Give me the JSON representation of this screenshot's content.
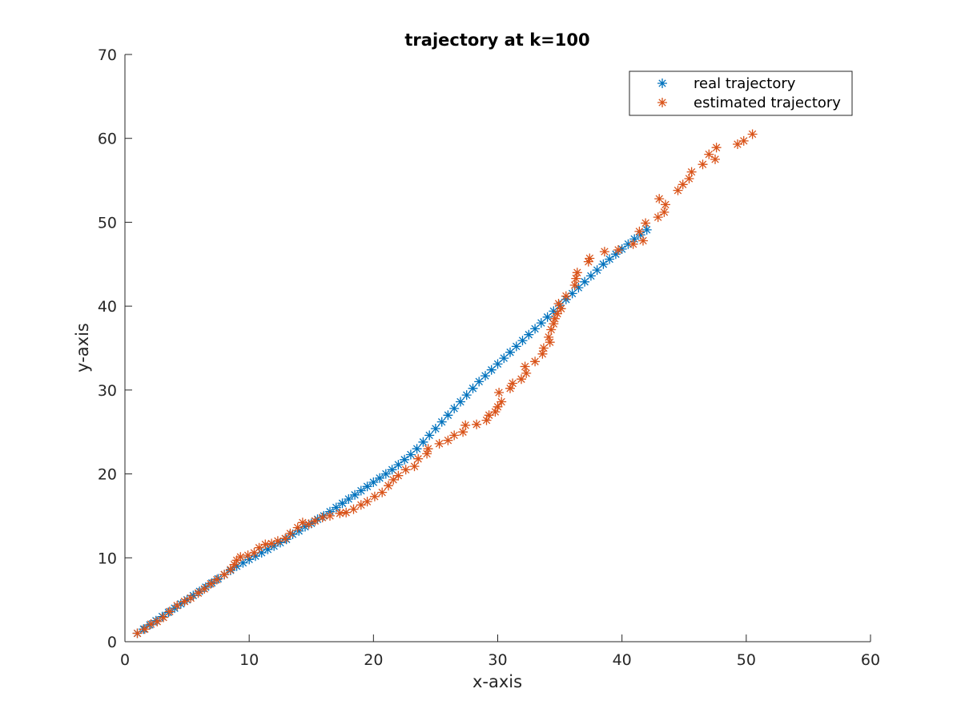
{
  "chart_data": {
    "type": "scatter",
    "title": "trajectory at k=100",
    "xlabel": "x-axis",
    "ylabel": "y-axis",
    "xlim": [
      0,
      60
    ],
    "ylim": [
      0,
      70
    ],
    "xticks": [
      "0",
      "10",
      "20",
      "30",
      "40",
      "50",
      "60"
    ],
    "yticks": [
      "0",
      "10",
      "20",
      "30",
      "40",
      "50",
      "60",
      "70"
    ],
    "grid": false,
    "legend_position": "top-right",
    "marker": "asterisk",
    "series": [
      {
        "name": "real trajectory",
        "color": "#0072BD",
        "points": [
          [
            1.0,
            1.0
          ],
          [
            1.5,
            1.5
          ],
          [
            2.0,
            2.0
          ],
          [
            2.5,
            2.5
          ],
          [
            3.0,
            3.0
          ],
          [
            3.5,
            3.5
          ],
          [
            4.0,
            4.0
          ],
          [
            4.5,
            4.5
          ],
          [
            5.0,
            5.0
          ],
          [
            5.5,
            5.5
          ],
          [
            6.0,
            6.0
          ],
          [
            6.5,
            6.5
          ],
          [
            7.0,
            7.0
          ],
          [
            7.5,
            7.5
          ],
          [
            8.0,
            8.0
          ],
          [
            8.5,
            8.5
          ],
          [
            9.0,
            9.0
          ],
          [
            9.5,
            9.4
          ],
          [
            10.0,
            9.8
          ],
          [
            10.5,
            10.2
          ],
          [
            11.0,
            10.6
          ],
          [
            11.5,
            11.0
          ],
          [
            12.0,
            11.4
          ],
          [
            12.5,
            11.8
          ],
          [
            13.0,
            12.2
          ],
          [
            13.5,
            12.8
          ],
          [
            14.0,
            13.2
          ],
          [
            14.5,
            13.7
          ],
          [
            15.0,
            14.1
          ],
          [
            15.5,
            14.6
          ],
          [
            16.0,
            15.0
          ],
          [
            16.5,
            15.5
          ],
          [
            17.0,
            16.0
          ],
          [
            17.5,
            16.5
          ],
          [
            18.0,
            17.0
          ],
          [
            18.5,
            17.5
          ],
          [
            19.0,
            18.0
          ],
          [
            19.5,
            18.5
          ],
          [
            20.0,
            19.0
          ],
          [
            20.5,
            19.5
          ],
          [
            21.0,
            20.0
          ],
          [
            21.5,
            20.5
          ],
          [
            22.0,
            21.1
          ],
          [
            22.5,
            21.7
          ],
          [
            23.0,
            22.3
          ],
          [
            23.5,
            23.0
          ],
          [
            24.0,
            23.8
          ],
          [
            24.5,
            24.6
          ],
          [
            25.0,
            25.4
          ],
          [
            25.5,
            26.2
          ],
          [
            26.0,
            27.0
          ],
          [
            26.5,
            27.8
          ],
          [
            27.0,
            28.6
          ],
          [
            27.5,
            29.4
          ],
          [
            28.0,
            30.2
          ],
          [
            28.5,
            31.0
          ],
          [
            29.0,
            31.7
          ],
          [
            29.5,
            32.4
          ],
          [
            30.0,
            33.1
          ],
          [
            30.5,
            33.8
          ],
          [
            31.0,
            34.5
          ],
          [
            31.5,
            35.2
          ],
          [
            32.0,
            35.9
          ],
          [
            32.5,
            36.6
          ],
          [
            33.0,
            37.3
          ],
          [
            33.5,
            38.0
          ],
          [
            34.0,
            38.7
          ],
          [
            34.5,
            39.4
          ],
          [
            35.0,
            40.1
          ],
          [
            35.5,
            40.8
          ],
          [
            36.0,
            41.5
          ],
          [
            36.5,
            42.2
          ],
          [
            37.0,
            42.9
          ],
          [
            37.5,
            43.6
          ],
          [
            38.0,
            44.3
          ],
          [
            38.5,
            45.0
          ],
          [
            39.0,
            45.6
          ],
          [
            39.5,
            46.2
          ],
          [
            40.0,
            46.8
          ],
          [
            40.5,
            47.4
          ],
          [
            41.0,
            48.0
          ],
          [
            41.5,
            48.5
          ],
          [
            42.0,
            49.1
          ]
        ]
      },
      {
        "name": "estimated trajectory",
        "color": "#D95319",
        "points": [
          [
            1.0,
            1.0
          ],
          [
            1.6,
            1.5
          ],
          [
            2.1,
            2.1
          ],
          [
            2.6,
            2.4
          ],
          [
            3.1,
            2.9
          ],
          [
            3.6,
            3.6
          ],
          [
            4.2,
            4.3
          ],
          [
            4.8,
            4.8
          ],
          [
            5.3,
            5.2
          ],
          [
            5.9,
            5.8
          ],
          [
            6.4,
            6.3
          ],
          [
            6.9,
            6.9
          ],
          [
            7.4,
            7.4
          ],
          [
            8.0,
            8.0
          ],
          [
            8.5,
            8.6
          ],
          [
            8.8,
            9.2
          ],
          [
            9.0,
            9.7
          ],
          [
            9.3,
            10.1
          ],
          [
            9.9,
            10.3
          ],
          [
            10.4,
            10.6
          ],
          [
            10.8,
            11.2
          ],
          [
            11.3,
            11.6
          ],
          [
            11.8,
            11.7
          ],
          [
            12.3,
            12.0
          ],
          [
            12.9,
            12.3
          ],
          [
            13.3,
            12.9
          ],
          [
            13.9,
            13.6
          ],
          [
            14.3,
            14.2
          ],
          [
            14.8,
            14.0
          ],
          [
            15.3,
            14.4
          ],
          [
            15.9,
            14.8
          ],
          [
            16.5,
            15.0
          ],
          [
            17.3,
            15.3
          ],
          [
            17.8,
            15.4
          ],
          [
            18.4,
            15.8
          ],
          [
            19.0,
            16.3
          ],
          [
            19.5,
            16.7
          ],
          [
            20.1,
            17.3
          ],
          [
            20.7,
            17.8
          ],
          [
            21.2,
            18.6
          ],
          [
            21.6,
            19.3
          ],
          [
            22.0,
            19.8
          ],
          [
            22.6,
            20.5
          ],
          [
            23.3,
            20.9
          ],
          [
            23.6,
            21.8
          ],
          [
            24.3,
            22.4
          ],
          [
            24.4,
            23.0
          ],
          [
            25.3,
            23.6
          ],
          [
            26.0,
            24.0
          ],
          [
            26.5,
            24.6
          ],
          [
            27.2,
            25.0
          ],
          [
            27.4,
            25.8
          ],
          [
            28.3,
            25.9
          ],
          [
            29.1,
            26.4
          ],
          [
            29.3,
            27.0
          ],
          [
            29.8,
            27.4
          ],
          [
            30.0,
            28.0
          ],
          [
            30.3,
            28.6
          ],
          [
            30.1,
            29.7
          ],
          [
            31.0,
            30.2
          ],
          [
            31.2,
            30.8
          ],
          [
            31.9,
            31.3
          ],
          [
            32.3,
            32.0
          ],
          [
            32.2,
            32.8
          ],
          [
            33.0,
            33.4
          ],
          [
            33.6,
            34.3
          ],
          [
            33.7,
            35.0
          ],
          [
            34.2,
            35.7
          ],
          [
            34.1,
            36.3
          ],
          [
            34.3,
            37.2
          ],
          [
            34.5,
            37.9
          ],
          [
            34.6,
            38.5
          ],
          [
            34.8,
            39.1
          ],
          [
            35.1,
            39.7
          ],
          [
            34.9,
            40.3
          ],
          [
            35.5,
            41.2
          ],
          [
            36.2,
            42.5
          ],
          [
            36.3,
            43.3
          ],
          [
            36.4,
            44.0
          ],
          [
            37.3,
            45.3
          ],
          [
            37.4,
            45.7
          ],
          [
            38.6,
            46.5
          ],
          [
            39.7,
            46.7
          ],
          [
            40.9,
            47.4
          ],
          [
            41.4,
            48.9
          ],
          [
            41.7,
            47.8
          ],
          [
            41.9,
            49.9
          ],
          [
            42.9,
            50.6
          ],
          [
            43.0,
            52.8
          ],
          [
            43.4,
            51.2
          ],
          [
            43.5,
            52.1
          ],
          [
            44.5,
            53.8
          ],
          [
            44.9,
            54.5
          ],
          [
            45.4,
            55.2
          ],
          [
            45.6,
            56.0
          ],
          [
            46.5,
            56.9
          ],
          [
            47.0,
            58.1
          ],
          [
            47.5,
            57.5
          ],
          [
            47.6,
            58.9
          ],
          [
            49.3,
            59.3
          ],
          [
            49.8,
            59.7
          ],
          [
            50.5,
            60.5
          ]
        ]
      }
    ]
  }
}
